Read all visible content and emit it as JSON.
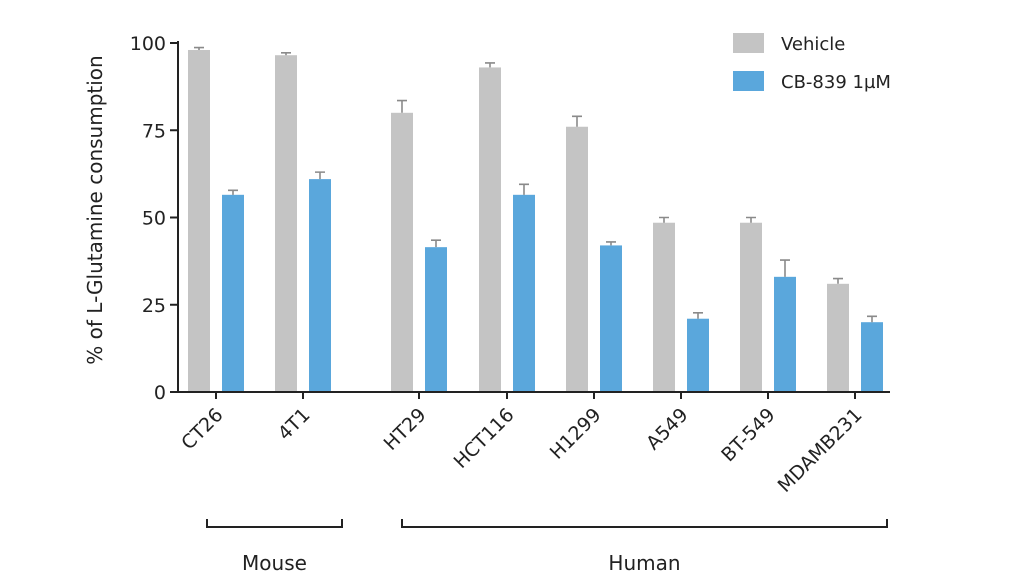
{
  "chart_data": {
    "type": "bar",
    "ylabel": "% of L-Glutamine consumption",
    "ylim": [
      0,
      100
    ],
    "yticks": [
      "0",
      "25",
      "50",
      "75",
      "100"
    ],
    "categories": [
      "CT26",
      "4T1",
      "HT29",
      "HCT116",
      "H1299",
      "A549",
      "BT-549",
      "MDAMB231"
    ],
    "series": [
      {
        "name": "Vehicle",
        "color": "#c4c4c4",
        "values": [
          98,
          96.5,
          80,
          93,
          76,
          48.5,
          48.5,
          31
        ],
        "errors": [
          0.7,
          0.7,
          3.5,
          1.3,
          3,
          1.5,
          1.5,
          1.5
        ]
      },
      {
        "name": "CB-839 1µM",
        "color": "#5aa7dc",
        "values": [
          56.5,
          61,
          41.5,
          56.5,
          42,
          21,
          33,
          20
        ],
        "errors": [
          1.3,
          2,
          2,
          3,
          1,
          1.7,
          4.8,
          1.7
        ]
      }
    ],
    "groups": [
      {
        "label": "Mouse",
        "categories": [
          "CT26",
          "4T1"
        ]
      },
      {
        "label": "Human",
        "categories": [
          "HT29",
          "HCT116",
          "H1299",
          "A549",
          "BT-549",
          "MDAMB231"
        ]
      }
    ],
    "legend_position": "top-right",
    "grid": false
  }
}
